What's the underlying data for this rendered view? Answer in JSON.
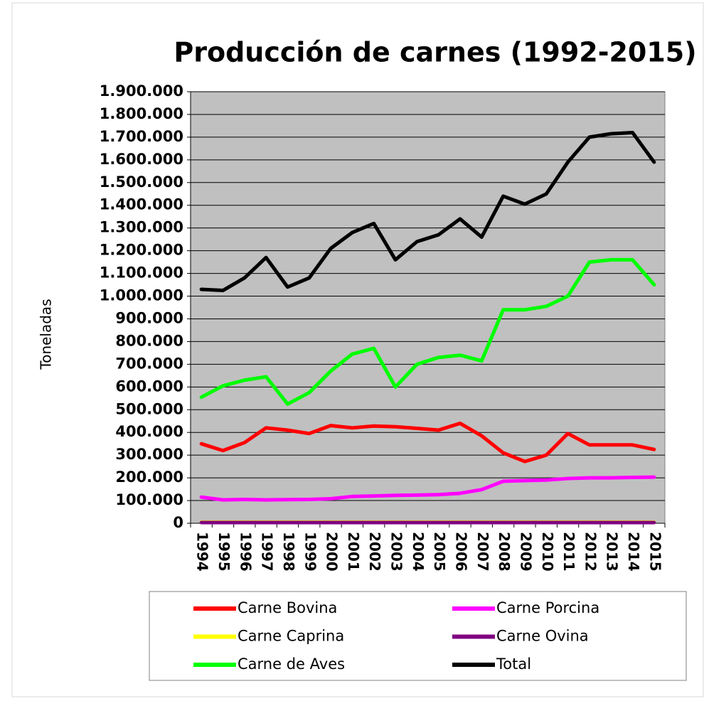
{
  "chart_data": {
    "type": "line",
    "title": "Producción de carnes (1992-2015)",
    "y_label": "Toneladas",
    "categories": [
      "1994",
      "1995",
      "1996",
      "1997",
      "1998",
      "1999",
      "2000",
      "2001",
      "2002",
      "2003",
      "2004",
      "2005",
      "2006",
      "2007",
      "2008",
      "2009",
      "2010",
      "2011",
      "2012",
      "2013",
      "2014",
      "2015"
    ],
    "series": [
      {
        "name": "Carne Bovina",
        "color": "#ff0000",
        "values": [
          350000,
          320000,
          355000,
          420000,
          410000,
          395000,
          430000,
          420000,
          428000,
          425000,
          418000,
          410000,
          440000,
          385000,
          310000,
          272000,
          300000,
          395000,
          345000,
          345000,
          345000,
          325000
        ]
      },
      {
        "name": "Carne Porcina",
        "color": "#ff00ff",
        "values": [
          115000,
          103000,
          105000,
          103000,
          104000,
          105000,
          108000,
          118000,
          120000,
          123000,
          124000,
          126000,
          132000,
          148000,
          185000,
          188000,
          190000,
          197000,
          200000,
          200000,
          202000,
          203000
        ]
      },
      {
        "name": "Carne Caprina",
        "color": "#ffff00",
        "values": [
          5000,
          5000,
          5000,
          5000,
          5000,
          5000,
          5000,
          5000,
          5000,
          5000,
          5000,
          5000,
          5000,
          5000,
          5000,
          5000,
          5000,
          5000,
          5000,
          5000,
          5000,
          5000
        ]
      },
      {
        "name": "Carne Ovina",
        "color": "#800080",
        "values": [
          3000,
          3000,
          3000,
          3000,
          3000,
          3000,
          3000,
          3000,
          3000,
          3000,
          3000,
          3000,
          3000,
          3000,
          3000,
          3000,
          3000,
          3000,
          3000,
          3000,
          3000,
          3000
        ]
      },
      {
        "name": "Carne de Aves",
        "color": "#00ff00",
        "values": [
          555000,
          605000,
          630000,
          645000,
          525000,
          575000,
          670000,
          745000,
          770000,
          600000,
          700000,
          730000,
          740000,
          715000,
          940000,
          940000,
          955000,
          1000000,
          1150000,
          1160000,
          1160000,
          1050000
        ]
      },
      {
        "name": "Total",
        "color": "#000000",
        "values": [
          1030000,
          1025000,
          1080000,
          1170000,
          1040000,
          1080000,
          1210000,
          1280000,
          1320000,
          1160000,
          1240000,
          1270000,
          1340000,
          1260000,
          1440000,
          1405000,
          1450000,
          1590000,
          1700000,
          1715000,
          1720000,
          1590000
        ]
      }
    ],
    "ylim": [
      0,
      1900000
    ],
    "yticks": [
      0,
      {
        "value": 100000,
        "label": "100.000"
      },
      {
        "value": 200000,
        "label": "200.000"
      },
      {
        "value": 300000,
        "label": "300.000"
      },
      {
        "value": 400000,
        "label": "400.000"
      },
      {
        "value": 500000,
        "label": "500.000"
      },
      {
        "value": 600000,
        "label": "600.000"
      },
      {
        "value": 700000,
        "label": "700.000"
      },
      {
        "value": 800000,
        "label": "800.000"
      },
      {
        "value": 900000,
        "label": "900.000"
      },
      {
        "value": 1000000,
        "label": "1.000.000"
      },
      {
        "value": 1100000,
        "label": "1.100.000"
      },
      {
        "value": 1200000,
        "label": "1.200.000"
      },
      {
        "value": 1300000,
        "label": "1.300.000"
      },
      {
        "value": 1400000,
        "label": "1.400.000"
      },
      {
        "value": 1500000,
        "label": "1.500.000"
      },
      {
        "value": 1600000,
        "label": "1.600.000"
      },
      {
        "value": 1700000,
        "label": "1.700.000"
      },
      {
        "value": 1800000,
        "label": "1.800.000"
      },
      {
        "value": 1900000,
        "label": "1.900.000"
      }
    ],
    "grid": true,
    "plot_background": "#c0c0c0"
  }
}
